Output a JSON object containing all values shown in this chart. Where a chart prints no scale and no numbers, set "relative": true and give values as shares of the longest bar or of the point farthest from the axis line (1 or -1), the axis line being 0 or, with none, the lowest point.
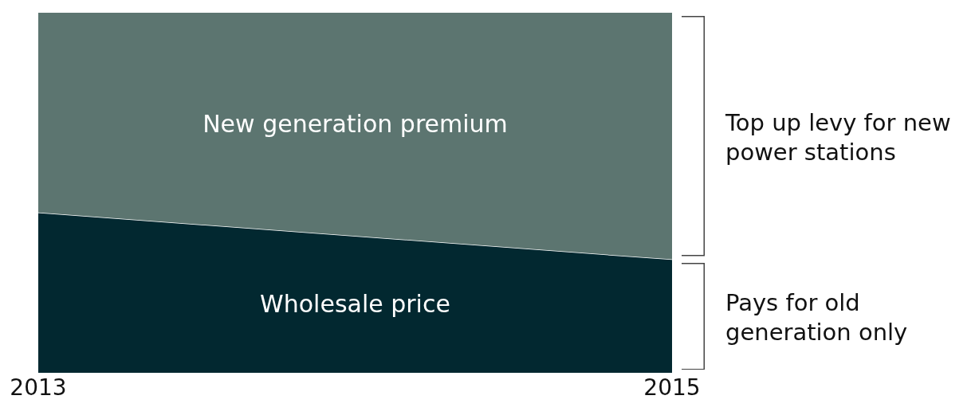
{
  "chart_data": {
    "type": "area",
    "stacked": true,
    "relative": true,
    "categories": [
      "2013",
      "2015"
    ],
    "series": [
      {
        "name": "Wholesale price",
        "color": "#022830",
        "values": [
          0.445,
          0.315
        ]
      },
      {
        "name": "New generation premium",
        "color": "#5c7570",
        "values": [
          0.555,
          0.685
        ]
      }
    ],
    "annotations": [
      "Top up levy for new power stations",
      "Pays for old generation only"
    ]
  }
}
